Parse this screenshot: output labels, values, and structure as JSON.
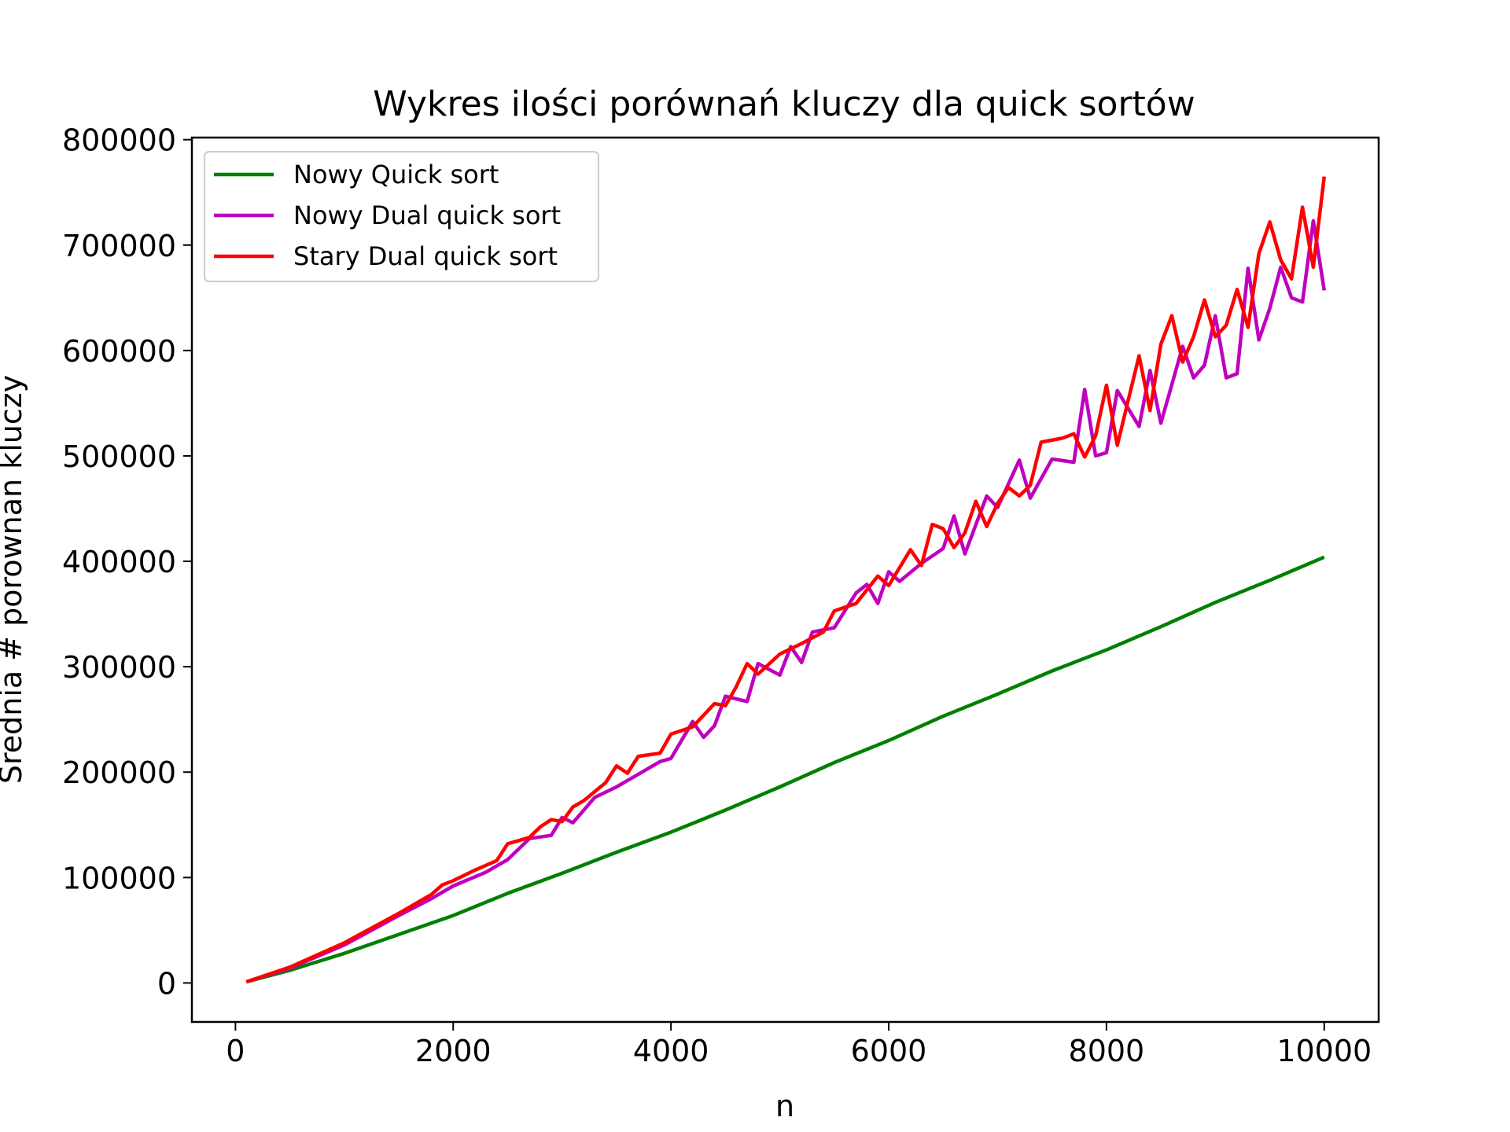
{
  "chart_data": {
    "type": "line",
    "title": "Wykres ilości porównań kluczy dla quick sortów",
    "xlabel": "n",
    "ylabel": "Srednia # porownan kluczy",
    "xlim": [
      -400,
      10500
    ],
    "ylim": [
      -37000,
      802000
    ],
    "xticks": [
      0,
      2000,
      4000,
      6000,
      8000,
      10000
    ],
    "yticks": [
      0,
      100000,
      200000,
      300000,
      400000,
      500000,
      600000,
      700000,
      800000
    ],
    "xtick_labels": [
      "0",
      "2000",
      "4000",
      "6000",
      "8000",
      "10000"
    ],
    "ytick_labels": [
      "0",
      "100000",
      "200000",
      "300000",
      "400000",
      "500000",
      "600000",
      "700000",
      "800000"
    ],
    "grid": false,
    "legend_position": "top-left",
    "x": [
      100,
      500,
      1000,
      1500,
      2000,
      2500,
      3000,
      3500,
      4000,
      4500,
      5000,
      5500,
      6000,
      6500,
      7000,
      7500,
      8000,
      8500,
      9000,
      9500,
      10000
    ],
    "series": [
      {
        "name": "Nowy Quick sort",
        "color": "#008000",
        "values": [
          1000,
          12000,
          28000,
          46000,
          64000,
          85000,
          104000,
          124000,
          143000,
          164000,
          186000,
          209000,
          230000,
          253000,
          274000,
          296000,
          316000,
          338000,
          361000,
          382000,
          404000
        ]
      },
      {
        "name": "Nowy Dual quick sort",
        "color": "#bf00bf",
        "x": [
          100,
          500,
          1000,
          1500,
          1800,
          2000,
          2300,
          2500,
          2700,
          2900,
          3000,
          3100,
          3300,
          3500,
          3700,
          3900,
          4000,
          4200,
          4300,
          4400,
          4500,
          4700,
          4800,
          5000,
          5100,
          5200,
          5300,
          5500,
          5700,
          5800,
          5900,
          6000,
          6100,
          6300,
          6500,
          6600,
          6700,
          6900,
          7000,
          7200,
          7300,
          7500,
          7700,
          7800,
          7900,
          8000,
          8100,
          8300,
          8400,
          8500,
          8700,
          8800,
          8900,
          9000,
          9100,
          9200,
          9300,
          9400,
          9500,
          9600,
          9700,
          9800,
          9900,
          10000
        ],
        "values": [
          1000,
          14000,
          36000,
          64000,
          80000,
          92000,
          105000,
          117000,
          137000,
          140000,
          157000,
          152000,
          176000,
          186000,
          198000,
          210000,
          213000,
          248000,
          233000,
          244000,
          272000,
          267000,
          303000,
          292000,
          319000,
          304000,
          333000,
          337000,
          370000,
          378000,
          360000,
          390000,
          381000,
          398000,
          412000,
          443000,
          407000,
          462000,
          451000,
          496000,
          460000,
          497000,
          494000,
          563000,
          500000,
          503000,
          562000,
          528000,
          581000,
          531000,
          604000,
          574000,
          586000,
          633000,
          574000,
          578000,
          678000,
          610000,
          640000,
          679000,
          650000,
          646000,
          723000,
          657000
        ]
      },
      {
        "name": "Stary Dual quick sort",
        "color": "#ff0000",
        "x": [
          100,
          500,
          1000,
          1500,
          1800,
          1900,
          2000,
          2200,
          2400,
          2500,
          2700,
          2800,
          2900,
          3000,
          3100,
          3200,
          3400,
          3500,
          3600,
          3700,
          3900,
          4000,
          4200,
          4400,
          4500,
          4600,
          4700,
          4800,
          5000,
          5200,
          5400,
          5500,
          5700,
          5900,
          6000,
          6200,
          6300,
          6400,
          6500,
          6600,
          6700,
          6800,
          6900,
          7000,
          7100,
          7200,
          7300,
          7400,
          7600,
          7700,
          7800,
          7900,
          8000,
          8100,
          8200,
          8300,
          8400,
          8500,
          8600,
          8700,
          8800,
          8900,
          9000,
          9100,
          9200,
          9300,
          9400,
          9500,
          9600,
          9700,
          9800,
          9900,
          10000
        ],
        "values": [
          1000,
          15000,
          38000,
          66000,
          84000,
          93000,
          97000,
          107000,
          116000,
          132000,
          138000,
          148000,
          155000,
          153000,
          167000,
          173000,
          190000,
          206000,
          199000,
          215000,
          218000,
          236000,
          243000,
          265000,
          263000,
          281000,
          303000,
          293000,
          312000,
          322000,
          333000,
          353000,
          360000,
          386000,
          377000,
          411000,
          396000,
          435000,
          431000,
          413000,
          427000,
          457000,
          433000,
          455000,
          470000,
          462000,
          472000,
          513000,
          517000,
          521000,
          499000,
          519000,
          567000,
          510000,
          553000,
          595000,
          543000,
          606000,
          633000,
          589000,
          613000,
          648000,
          613000,
          624000,
          658000,
          622000,
          692000,
          722000,
          686000,
          668000,
          736000,
          679000,
          765000
        ]
      }
    ]
  }
}
